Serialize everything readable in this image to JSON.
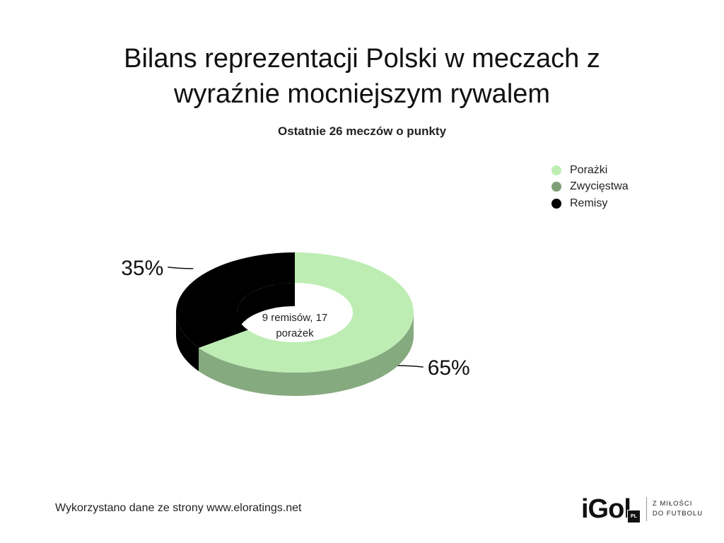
{
  "header": {
    "title_line1": "Bilans reprezentacji Polski w meczach z",
    "title_line2": "wyraźnie mocniejszym rywalem",
    "subtitle": "Ostatnie 26 meczów o punkty"
  },
  "chart_data": {
    "type": "pie",
    "style": "3d-donut",
    "title": "Bilans reprezentacji Polski w meczach z wyraźnie mocniejszym rywalem",
    "subtitle": "Ostatnie 26 meczów o punkty",
    "legend_position": "top-right",
    "legend": [
      {
        "name": "Porażki",
        "color": "#bdedb3"
      },
      {
        "name": "Zwycięstwa",
        "color": "#7f9e77"
      },
      {
        "name": "Remisy",
        "color": "#000000"
      }
    ],
    "slices": [
      {
        "name": "Porażki",
        "value": 65,
        "count": 17,
        "label": "65%",
        "color": "#bdedb3",
        "side_color": "#86aa7f"
      },
      {
        "name": "Zwycięstwa",
        "value": 0,
        "count": 0,
        "label": "",
        "color": "#7f9e77",
        "side_color": "#6a8a63"
      },
      {
        "name": "Remisy",
        "value": 35,
        "count": 9,
        "label": "35%",
        "color": "#000000",
        "side_color": "#000000"
      }
    ],
    "center_label_line1": "9 remisów, 17",
    "center_label_line2": "porażek"
  },
  "footer": {
    "source": "Wykorzystano dane ze strony www.eloratings.net",
    "logo_text": "iGol",
    "logo_badge": "PL",
    "tagline_line1": "Z MIŁOŚCI",
    "tagline_line2": "DO FUTBOLU"
  }
}
